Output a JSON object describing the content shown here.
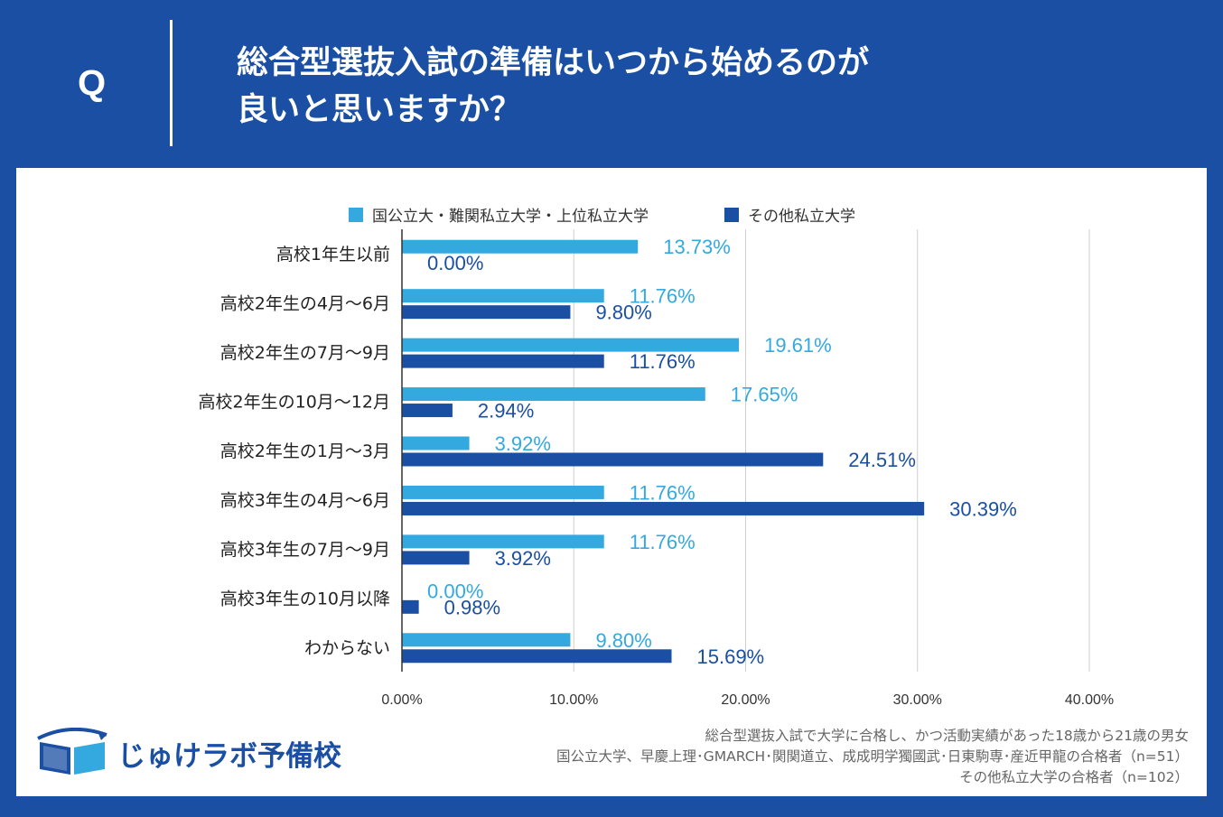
{
  "header": {
    "q_label": "Q",
    "question_line1": "総合型選抜入試の準備はいつから始めるのが",
    "question_line2": "良いと思いますか？"
  },
  "colors": {
    "series1": "#33a9e0",
    "series2": "#1a4fa3",
    "background": "#1a4fa3"
  },
  "chart_data": {
    "type": "bar",
    "orientation": "horizontal",
    "categories": [
      "高校1年生以前",
      "高校2年生の4月～6月",
      "高校2年生の7月～9月",
      "高校2年生の10月～12月",
      "高校2年生の1月～3月",
      "高校3年生の4月～6月",
      "高校3年生の7月～9月",
      "高校3年生の10月以降",
      "わからない"
    ],
    "series": [
      {
        "name": "国公立大・難関私立大学・上位私立大学",
        "values": [
          13.73,
          11.76,
          19.61,
          17.65,
          3.92,
          11.76,
          11.76,
          0.0,
          9.8
        ]
      },
      {
        "name": "その他私立大学",
        "values": [
          0.0,
          9.8,
          11.76,
          2.94,
          24.51,
          30.39,
          3.92,
          0.98,
          15.69
        ]
      }
    ],
    "xlim": [
      0,
      40
    ],
    "xticks": [
      0,
      10,
      20,
      30,
      40
    ],
    "xtick_labels": [
      "0.00%",
      "10.00%",
      "20.00%",
      "30.00%",
      "40.00%"
    ],
    "grid": true,
    "legend": "top-center",
    "unit": "%"
  },
  "logo": {
    "text": "じゅけラボ予備校"
  },
  "notes": {
    "line1": "総合型選抜入試で大学に合格し、かつ活動実績があった18歳から21歳の男女",
    "line2": "国公立大学、早慶上理･GMARCH･関関道立、成成明学獨國武･日東駒専･産近甲龍の合格者（n=51）",
    "line3": "その他私立大学の合格者（n=102）"
  }
}
